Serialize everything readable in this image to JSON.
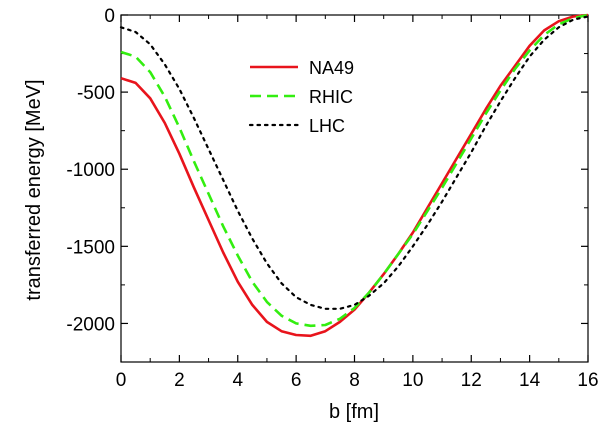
{
  "chart_data": {
    "type": "line",
    "xlabel": "b  [fm]",
    "ylabel": "transferred energy  [MeV]",
    "xlim": [
      0,
      16
    ],
    "ylim": [
      -2250,
      0
    ],
    "xticks": [
      0,
      2,
      4,
      6,
      8,
      10,
      12,
      14,
      16
    ],
    "xtick_labels": [
      "0",
      "2",
      "4",
      "6",
      "8",
      "10",
      "12",
      "14",
      "16"
    ],
    "yticks": [
      0,
      -500,
      -1000,
      -1500,
      -2000
    ],
    "ytick_labels": [
      "0",
      "-500",
      "-1000",
      "-1500",
      "-2000"
    ],
    "grid": false,
    "legend_position": "top-center",
    "series": [
      {
        "name": "NA49",
        "color": "#e8141c",
        "dash": "solid",
        "x": [
          0,
          0.5,
          1,
          1.5,
          2,
          2.5,
          3,
          3.5,
          4,
          4.5,
          5,
          5.5,
          6,
          6.5,
          7,
          7.5,
          8,
          8.5,
          9,
          9.5,
          10,
          10.5,
          11,
          11.5,
          12,
          12.5,
          13,
          13.5,
          14,
          14.5,
          15,
          15.5,
          16
        ],
        "y": [
          -410,
          -440,
          -540,
          -700,
          -900,
          -1120,
          -1330,
          -1540,
          -1730,
          -1880,
          -1990,
          -2050,
          -2075,
          -2080,
          -2050,
          -1990,
          -1910,
          -1800,
          -1680,
          -1550,
          -1410,
          -1250,
          -1090,
          -930,
          -770,
          -610,
          -460,
          -330,
          -200,
          -100,
          -40,
          -10,
          0
        ]
      },
      {
        "name": "RHIC",
        "color": "#33ee10",
        "dash": "dashed",
        "x": [
          0,
          0.5,
          1,
          1.5,
          2,
          2.5,
          3,
          3.5,
          4,
          4.5,
          5,
          5.5,
          6,
          6.5,
          7,
          7.5,
          8,
          8.5,
          9,
          9.5,
          10,
          10.5,
          11,
          11.5,
          12,
          12.5,
          13,
          13.5,
          14,
          14.5,
          15,
          15.5,
          16
        ],
        "y": [
          -240,
          -270,
          -370,
          -530,
          -730,
          -950,
          -1160,
          -1370,
          -1560,
          -1730,
          -1860,
          -1950,
          -2000,
          -2015,
          -2010,
          -1970,
          -1900,
          -1800,
          -1680,
          -1550,
          -1420,
          -1270,
          -1120,
          -960,
          -800,
          -640,
          -490,
          -350,
          -230,
          -130,
          -60,
          -20,
          0
        ]
      },
      {
        "name": "LHC",
        "color": "#000000",
        "dash": "dotted",
        "x": [
          0,
          0.5,
          1,
          1.5,
          2,
          2.5,
          3,
          3.5,
          4,
          4.5,
          5,
          5.5,
          6,
          6.5,
          7,
          7.5,
          8,
          8.5,
          9,
          9.5,
          10,
          10.5,
          11,
          11.5,
          12,
          12.5,
          13,
          13.5,
          14,
          14.5,
          15,
          15.5,
          16
        ],
        "y": [
          -80,
          -110,
          -190,
          -320,
          -480,
          -670,
          -870,
          -1070,
          -1270,
          -1450,
          -1610,
          -1740,
          -1830,
          -1880,
          -1905,
          -1905,
          -1880,
          -1820,
          -1740,
          -1630,
          -1500,
          -1360,
          -1210,
          -1050,
          -890,
          -720,
          -560,
          -410,
          -270,
          -160,
          -80,
          -30,
          -10
        ]
      }
    ]
  }
}
